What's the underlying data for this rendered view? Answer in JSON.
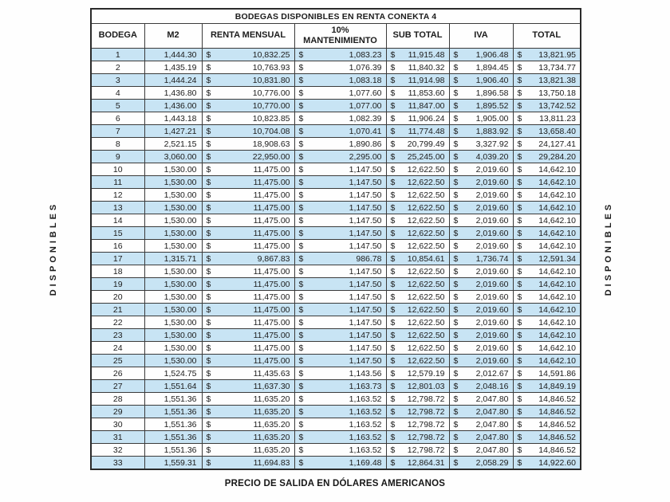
{
  "title": "BODEGAS DISPONIBLES EN RENTA CONEKTA 4",
  "columns": [
    "BODEGA",
    "M2",
    "RENTA MENSUAL",
    "10% MANTENIMIENTO",
    "SUB TOTAL",
    "IVA",
    "TOTAL"
  ],
  "currency_symbol": "$",
  "side_label_left": "DISPONIBLES",
  "side_label_right": "DISPONIBLES",
  "footer": "PRECIO DE SALIDA EN DÓLARES AMERICANOS",
  "colors": {
    "row_highlight": "#c8e4f4",
    "border": "#3a3a3a",
    "text": "#1c1c1c"
  },
  "rows": [
    {
      "bodega": "1",
      "m2": "1,444.30",
      "renta_mensual": "10,832.25",
      "mantenimiento": "1,083.23",
      "sub_total": "11,915.48",
      "iva": "1,906.48",
      "total": "13,821.95"
    },
    {
      "bodega": "2",
      "m2": "1,435.19",
      "renta_mensual": "10,763.93",
      "mantenimiento": "1,076.39",
      "sub_total": "11,840.32",
      "iva": "1,894.45",
      "total": "13,734.77"
    },
    {
      "bodega": "3",
      "m2": "1,444.24",
      "renta_mensual": "10,831.80",
      "mantenimiento": "1,083.18",
      "sub_total": "11,914.98",
      "iva": "1,906.40",
      "total": "13,821.38"
    },
    {
      "bodega": "4",
      "m2": "1,436.80",
      "renta_mensual": "10,776.00",
      "mantenimiento": "1,077.60",
      "sub_total": "11,853.60",
      "iva": "1,896.58",
      "total": "13,750.18"
    },
    {
      "bodega": "5",
      "m2": "1,436.00",
      "renta_mensual": "10,770.00",
      "mantenimiento": "1,077.00",
      "sub_total": "11,847.00",
      "iva": "1,895.52",
      "total": "13,742.52"
    },
    {
      "bodega": "6",
      "m2": "1,443.18",
      "renta_mensual": "10,823.85",
      "mantenimiento": "1,082.39",
      "sub_total": "11,906.24",
      "iva": "1,905.00",
      "total": "13,811.23"
    },
    {
      "bodega": "7",
      "m2": "1,427.21",
      "renta_mensual": "10,704.08",
      "mantenimiento": "1,070.41",
      "sub_total": "11,774.48",
      "iva": "1,883.92",
      "total": "13,658.40"
    },
    {
      "bodega": "8",
      "m2": "2,521.15",
      "renta_mensual": "18,908.63",
      "mantenimiento": "1,890.86",
      "sub_total": "20,799.49",
      "iva": "3,327.92",
      "total": "24,127.41"
    },
    {
      "bodega": "9",
      "m2": "3,060.00",
      "renta_mensual": "22,950.00",
      "mantenimiento": "2,295.00",
      "sub_total": "25,245.00",
      "iva": "4,039.20",
      "total": "29,284.20"
    },
    {
      "bodega": "10",
      "m2": "1,530.00",
      "renta_mensual": "11,475.00",
      "mantenimiento": "1,147.50",
      "sub_total": "12,622.50",
      "iva": "2,019.60",
      "total": "14,642.10"
    },
    {
      "bodega": "11",
      "m2": "1,530.00",
      "renta_mensual": "11,475.00",
      "mantenimiento": "1,147.50",
      "sub_total": "12,622.50",
      "iva": "2,019.60",
      "total": "14,642.10"
    },
    {
      "bodega": "12",
      "m2": "1,530.00",
      "renta_mensual": "11,475.00",
      "mantenimiento": "1,147.50",
      "sub_total": "12,622.50",
      "iva": "2,019.60",
      "total": "14,642.10"
    },
    {
      "bodega": "13",
      "m2": "1,530.00",
      "renta_mensual": "11,475.00",
      "mantenimiento": "1,147.50",
      "sub_total": "12,622.50",
      "iva": "2,019.60",
      "total": "14,642.10"
    },
    {
      "bodega": "14",
      "m2": "1,530.00",
      "renta_mensual": "11,475.00",
      "mantenimiento": "1,147.50",
      "sub_total": "12,622.50",
      "iva": "2,019.60",
      "total": "14,642.10"
    },
    {
      "bodega": "15",
      "m2": "1,530.00",
      "renta_mensual": "11,475.00",
      "mantenimiento": "1,147.50",
      "sub_total": "12,622.50",
      "iva": "2,019.60",
      "total": "14,642.10"
    },
    {
      "bodega": "16",
      "m2": "1,530.00",
      "renta_mensual": "11,475.00",
      "mantenimiento": "1,147.50",
      "sub_total": "12,622.50",
      "iva": "2,019.60",
      "total": "14,642.10"
    },
    {
      "bodega": "17",
      "m2": "1,315.71",
      "renta_mensual": "9,867.83",
      "mantenimiento": "986.78",
      "sub_total": "10,854.61",
      "iva": "1,736.74",
      "total": "12,591.34"
    },
    {
      "bodega": "18",
      "m2": "1,530.00",
      "renta_mensual": "11,475.00",
      "mantenimiento": "1,147.50",
      "sub_total": "12,622.50",
      "iva": "2,019.60",
      "total": "14,642.10"
    },
    {
      "bodega": "19",
      "m2": "1,530.00",
      "renta_mensual": "11,475.00",
      "mantenimiento": "1,147.50",
      "sub_total": "12,622.50",
      "iva": "2,019.60",
      "total": "14,642.10"
    },
    {
      "bodega": "20",
      "m2": "1,530.00",
      "renta_mensual": "11,475.00",
      "mantenimiento": "1,147.50",
      "sub_total": "12,622.50",
      "iva": "2,019.60",
      "total": "14,642.10"
    },
    {
      "bodega": "21",
      "m2": "1,530.00",
      "renta_mensual": "11,475.00",
      "mantenimiento": "1,147.50",
      "sub_total": "12,622.50",
      "iva": "2,019.60",
      "total": "14,642.10"
    },
    {
      "bodega": "22",
      "m2": "1,530.00",
      "renta_mensual": "11,475.00",
      "mantenimiento": "1,147.50",
      "sub_total": "12,622.50",
      "iva": "2,019.60",
      "total": "14,642.10"
    },
    {
      "bodega": "23",
      "m2": "1,530.00",
      "renta_mensual": "11,475.00",
      "mantenimiento": "1,147.50",
      "sub_total": "12,622.50",
      "iva": "2,019.60",
      "total": "14,642.10"
    },
    {
      "bodega": "24",
      "m2": "1,530.00",
      "renta_mensual": "11,475.00",
      "mantenimiento": "1,147.50",
      "sub_total": "12,622.50",
      "iva": "2,019.60",
      "total": "14,642.10"
    },
    {
      "bodega": "25",
      "m2": "1,530.00",
      "renta_mensual": "11,475.00",
      "mantenimiento": "1,147.50",
      "sub_total": "12,622.50",
      "iva": "2,019.60",
      "total": "14,642.10"
    },
    {
      "bodega": "26",
      "m2": "1,524.75",
      "renta_mensual": "11,435.63",
      "mantenimiento": "1,143.56",
      "sub_total": "12,579.19",
      "iva": "2,012.67",
      "total": "14,591.86"
    },
    {
      "bodega": "27",
      "m2": "1,551.64",
      "renta_mensual": "11,637.30",
      "mantenimiento": "1,163.73",
      "sub_total": "12,801.03",
      "iva": "2,048.16",
      "total": "14,849.19"
    },
    {
      "bodega": "28",
      "m2": "1,551.36",
      "renta_mensual": "11,635.20",
      "mantenimiento": "1,163.52",
      "sub_total": "12,798.72",
      "iva": "2,047.80",
      "total": "14,846.52"
    },
    {
      "bodega": "29",
      "m2": "1,551.36",
      "renta_mensual": "11,635.20",
      "mantenimiento": "1,163.52",
      "sub_total": "12,798.72",
      "iva": "2,047.80",
      "total": "14,846.52"
    },
    {
      "bodega": "30",
      "m2": "1,551.36",
      "renta_mensual": "11,635.20",
      "mantenimiento": "1,163.52",
      "sub_total": "12,798.72",
      "iva": "2,047.80",
      "total": "14,846.52"
    },
    {
      "bodega": "31",
      "m2": "1,551.36",
      "renta_mensual": "11,635.20",
      "mantenimiento": "1,163.52",
      "sub_total": "12,798.72",
      "iva": "2,047.80",
      "total": "14,846.52"
    },
    {
      "bodega": "32",
      "m2": "1,551.36",
      "renta_mensual": "11,635.20",
      "mantenimiento": "1,163.52",
      "sub_total": "12,798.72",
      "iva": "2,047.80",
      "total": "14,846.52"
    },
    {
      "bodega": "33",
      "m2": "1,559.31",
      "renta_mensual": "11,694.83",
      "mantenimiento": "1,169.48",
      "sub_total": "12,864.31",
      "iva": "2,058.29",
      "total": "14,922.60"
    }
  ]
}
